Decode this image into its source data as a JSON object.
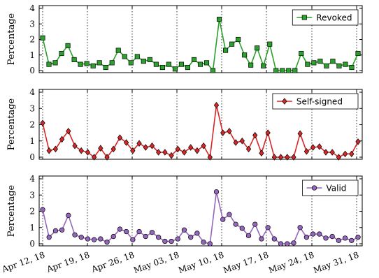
{
  "chart_data": [
    {
      "type": "line",
      "ylabel": "Percentage",
      "ylim": [
        0,
        4
      ],
      "yticks": [
        "0",
        "1",
        "2",
        "3",
        "4"
      ],
      "legend": "top-right",
      "grid_x_dotted": true,
      "series": [
        {
          "name": "Revoked",
          "color": "#2ca02c",
          "marker": "square",
          "values": [
            2.1,
            0.4,
            0.5,
            1.1,
            1.6,
            0.7,
            0.4,
            0.45,
            0.3,
            0.5,
            0.2,
            0.5,
            1.3,
            0.9,
            0.5,
            0.9,
            0.6,
            0.7,
            0.4,
            0.2,
            0.4,
            0.1,
            0.4,
            0.2,
            0.7,
            0.4,
            0.5,
            0.0,
            3.3,
            1.3,
            1.7,
            2.0,
            1.0,
            0.35,
            1.45,
            0.3,
            1.7,
            0.0,
            0.0,
            0.0,
            0.0,
            1.1,
            0.4,
            0.5,
            0.6,
            0.3,
            0.6,
            0.3,
            0.4,
            0.2,
            1.1
          ]
        }
      ]
    },
    {
      "type": "line",
      "ylabel": "Percentage",
      "ylim": [
        0,
        4
      ],
      "yticks": [
        "0",
        "1",
        "2",
        "3",
        "4"
      ],
      "legend": "top-right",
      "grid_x_dotted": true,
      "series": [
        {
          "name": "Self-signed",
          "color": "#d62728",
          "marker": "diamond",
          "values": [
            2.1,
            0.4,
            0.5,
            1.1,
            1.6,
            0.7,
            0.4,
            0.3,
            0.0,
            0.55,
            0.0,
            0.5,
            1.2,
            0.9,
            0.4,
            0.85,
            0.6,
            0.7,
            0.3,
            0.3,
            0.1,
            0.5,
            0.3,
            0.6,
            0.4,
            0.7,
            0.0,
            3.2,
            1.5,
            1.6,
            0.9,
            1.0,
            0.5,
            1.35,
            0.25,
            1.5,
            0.0,
            0.0,
            0.0,
            0.0,
            1.45,
            0.35,
            0.6,
            0.65,
            0.3,
            0.3,
            0.0,
            0.2,
            0.2,
            0.95
          ]
        }
      ]
    },
    {
      "type": "line",
      "ylabel": "Percentage",
      "ylim": [
        0,
        4
      ],
      "yticks": [
        "0",
        "1",
        "2",
        "3",
        "4"
      ],
      "legend": "top-right",
      "grid_x_dotted": true,
      "xlabels": [
        "Apr 12, 18",
        "Apr 19, 18",
        "Apr 26, 18",
        "May 03, 18",
        "May 10, 18",
        "May 17, 18",
        "May 24, 18",
        "May 31, 18"
      ],
      "series": [
        {
          "name": "Valid",
          "color": "#9467bd",
          "marker": "circle",
          "values": [
            2.1,
            0.4,
            0.8,
            0.85,
            1.75,
            0.55,
            0.4,
            0.3,
            0.25,
            0.3,
            0.1,
            0.45,
            0.9,
            0.75,
            0.25,
            0.75,
            0.45,
            0.7,
            0.4,
            0.15,
            0.15,
            0.3,
            0.85,
            0.4,
            0.65,
            0.1,
            0.0,
            3.2,
            1.5,
            1.8,
            1.2,
            0.95,
            0.5,
            1.2,
            0.3,
            1.0,
            0.3,
            0.0,
            0.0,
            0.05,
            1.0,
            0.4,
            0.6,
            0.6,
            0.35,
            0.45,
            0.2,
            0.35,
            0.2,
            0.4
          ]
        }
      ]
    }
  ]
}
